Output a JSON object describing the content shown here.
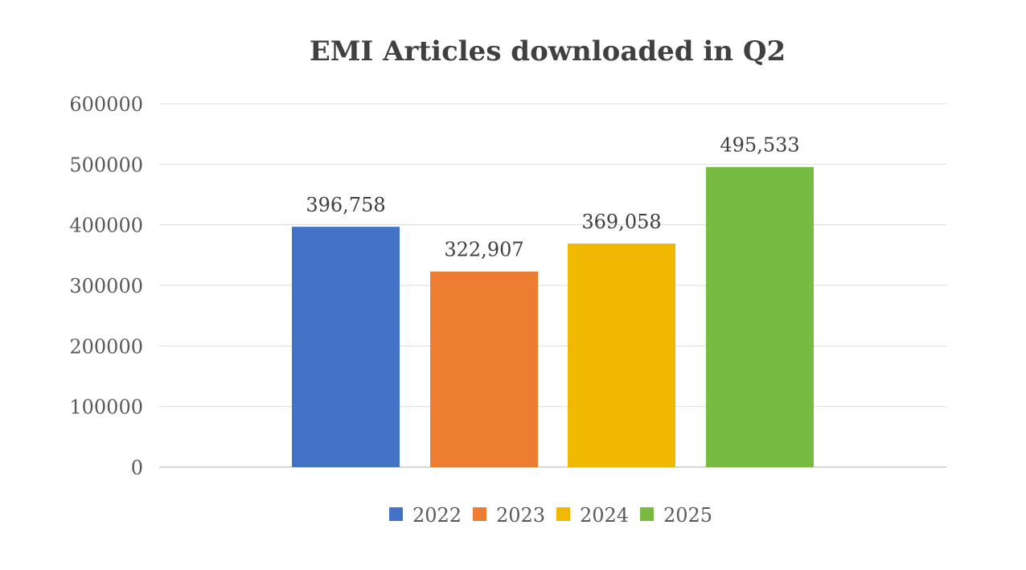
{
  "chart_data": {
    "type": "bar",
    "title": "EMI Articles downloaded in Q2",
    "xlabel": "",
    "ylabel": "",
    "ylim": [
      0,
      600000
    ],
    "y_ticks": [
      0,
      100000,
      200000,
      300000,
      400000,
      500000,
      600000
    ],
    "y_tick_labels": [
      "0",
      "100000",
      "200000",
      "300000",
      "400000",
      "500000",
      "600000"
    ],
    "grid": true,
    "legend_position": "bottom",
    "series": [
      {
        "name": "2022",
        "value": 396758,
        "label": "396,758",
        "color": "#4472C4"
      },
      {
        "name": "2023",
        "value": 322907,
        "label": "322,907",
        "color": "#ED7D31"
      },
      {
        "name": "2024",
        "value": 369058,
        "label": "369,058",
        "color": "#F0B800"
      },
      {
        "name": "2025",
        "value": 495533,
        "label": "495,533",
        "color": "#77BC41"
      }
    ]
  }
}
